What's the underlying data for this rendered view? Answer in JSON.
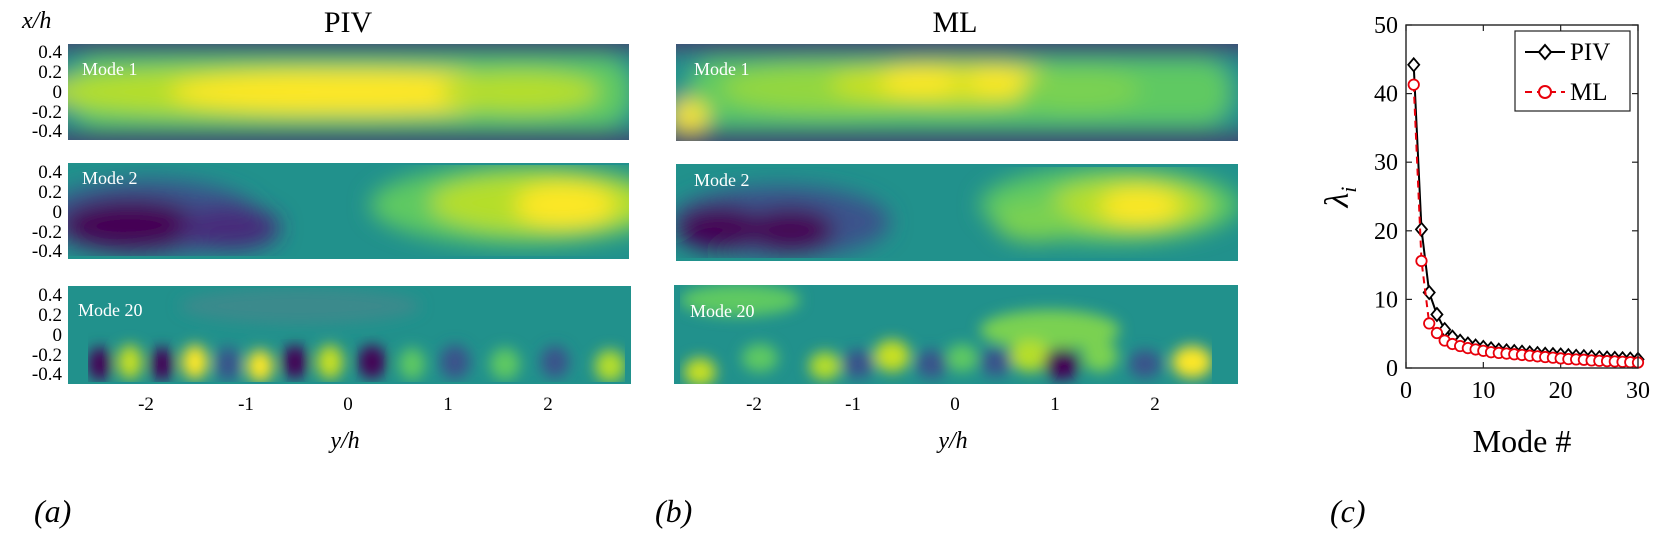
{
  "figure": {
    "panel_labels": [
      "(a)",
      "(b)",
      "(c)"
    ],
    "colormap": [
      "#440154",
      "#3b528b",
      "#21918c",
      "#5ec962",
      "#fde725"
    ]
  },
  "heatmaps": [
    {
      "title": "PIV",
      "ylabel": "x/h",
      "xlabel": "y/h",
      "xticks": [
        "-2",
        "-1",
        "0",
        "1",
        "2"
      ],
      "yticks": [
        "0.4",
        "0.2",
        "0",
        "-0.2",
        "-0.4"
      ],
      "modes": [
        "Mode 1",
        "Mode 2",
        "Mode 20"
      ]
    },
    {
      "title": "ML",
      "xlabel": "y/h",
      "xticks": [
        "-2",
        "-1",
        "0",
        "1",
        "2"
      ],
      "modes": [
        "Mode 1",
        "Mode 2",
        "Mode 20"
      ]
    }
  ],
  "chart_data": {
    "type": "line",
    "title": "",
    "xlabel": "Mode #",
    "ylabel": "λ_i",
    "ylabel_main": "λ",
    "ylabel_sub": "i",
    "xlim": [
      0,
      30
    ],
    "ylim": [
      0,
      50
    ],
    "xticks": [
      "0",
      "10",
      "20",
      "30"
    ],
    "yticks": [
      "0",
      "10",
      "20",
      "30",
      "40",
      "50"
    ],
    "legend_position": "top-right",
    "x": [
      1,
      2,
      3,
      4,
      5,
      6,
      7,
      8,
      9,
      10,
      11,
      12,
      13,
      14,
      15,
      16,
      17,
      18,
      19,
      20,
      21,
      22,
      23,
      24,
      25,
      26,
      27,
      28,
      29,
      30
    ],
    "series": [
      {
        "name": "PIV",
        "color": "#000000",
        "marker": "diamond",
        "values": [
          44.2,
          20.2,
          11.0,
          7.8,
          5.6,
          4.5,
          3.9,
          3.5,
          3.2,
          3.0,
          2.8,
          2.6,
          2.5,
          2.4,
          2.3,
          2.2,
          2.1,
          2.0,
          1.95,
          1.9,
          1.8,
          1.7,
          1.65,
          1.6,
          1.5,
          1.45,
          1.4,
          1.35,
          1.3,
          1.25
        ]
      },
      {
        "name": "ML",
        "color": "#e8000b",
        "marker": "circle",
        "values": [
          41.3,
          15.6,
          6.5,
          5.1,
          4.0,
          3.5,
          3.2,
          2.9,
          2.7,
          2.5,
          2.3,
          2.2,
          2.1,
          2.0,
          1.9,
          1.8,
          1.7,
          1.6,
          1.5,
          1.4,
          1.3,
          1.25,
          1.2,
          1.1,
          1.05,
          1.0,
          0.95,
          0.9,
          0.85,
          0.8
        ]
      }
    ]
  }
}
